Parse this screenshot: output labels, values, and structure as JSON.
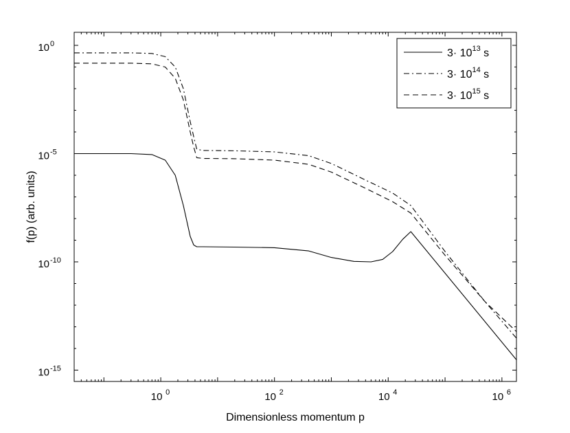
{
  "chart_data": {
    "type": "line",
    "title": "",
    "xlabel": "Dimensionless momentum p",
    "ylabel": "f(p) (arb. units)",
    "xscale": "log",
    "yscale": "log",
    "xlim": [
      0.03,
      1800000
    ],
    "ylim": [
      3e-16,
      4
    ],
    "grid": false,
    "legend_position": "top-right",
    "x_ticks": [
      {
        "value": 1,
        "base": "10",
        "exp": "0"
      },
      {
        "value": 100,
        "base": "10",
        "exp": "2"
      },
      {
        "value": 10000,
        "base": "10",
        "exp": "4"
      },
      {
        "value": 1000000,
        "base": "10",
        "exp": "6"
      }
    ],
    "y_ticks": [
      {
        "value": 1,
        "base": "10",
        "exp": "0"
      },
      {
        "value": 1e-05,
        "base": "10",
        "exp": "-5"
      },
      {
        "value": 1e-10,
        "base": "10",
        "exp": "-10"
      },
      {
        "value": 1e-15,
        "base": "10",
        "exp": "-15"
      }
    ],
    "series": [
      {
        "name": "3· 10¹³ s",
        "legend": {
          "prefix": "3· 10",
          "exp": "13",
          "suffix": " s"
        },
        "line_style": "solid",
        "x": [
          0.03,
          0.3,
          0.7,
          1.2,
          1.8,
          2.5,
          3.3,
          3.8,
          4.3,
          5.5,
          20,
          100,
          400,
          1000,
          2500,
          5000,
          8000,
          12000,
          18000,
          25000,
          1800000
        ],
        "y": [
          1e-05,
          1e-05,
          9e-06,
          5e-06,
          1e-06,
          4e-08,
          1.5e-09,
          6e-10,
          5e-10,
          5e-10,
          4.8e-10,
          4.5e-10,
          3.2e-10,
          1.6e-10,
          1.05e-10,
          1e-10,
          1.3e-10,
          3e-10,
          1.1e-09,
          2.5e-09,
          3e-15
        ]
      },
      {
        "name": "3· 10¹⁴ s",
        "legend": {
          "prefix": "3· 10",
          "exp": "14",
          "suffix": " s"
        },
        "line_style": "dashdot",
        "x": [
          0.03,
          0.3,
          0.7,
          1.2,
          1.8,
          2.5,
          3.3,
          3.8,
          4.3,
          5.5,
          20,
          100,
          400,
          1000,
          4000,
          12000,
          25000,
          100000,
          500000,
          1800000
        ],
        "y": [
          0.45,
          0.45,
          0.42,
          0.3,
          0.1,
          0.01,
          0.0003,
          6e-05,
          1.6e-05,
          1.4e-05,
          1.35e-05,
          1.2e-05,
          8e-06,
          3.5e-06,
          6e-07,
          1.5e-07,
          4e-08,
          3e-10,
          1.5e-12,
          3e-14
        ]
      },
      {
        "name": "3· 10¹⁵ s",
        "legend": {
          "prefix": "3· 10",
          "exp": "15",
          "suffix": " s"
        },
        "line_style": "dashed",
        "x": [
          0.03,
          0.3,
          0.7,
          1.2,
          1.8,
          2.5,
          3.3,
          3.8,
          4.3,
          5.5,
          20,
          100,
          400,
          1000,
          4000,
          12000,
          25000,
          100000,
          500000,
          1800000
        ],
        "y": [
          0.15,
          0.15,
          0.14,
          0.1,
          0.03,
          0.003,
          0.0001,
          2e-05,
          6.5e-06,
          6e-06,
          5.8e-06,
          5e-06,
          3.2e-06,
          1.4e-06,
          2.5e-07,
          6e-08,
          1.8e-08,
          2e-10,
          1.5e-12,
          6e-14
        ]
      }
    ]
  }
}
